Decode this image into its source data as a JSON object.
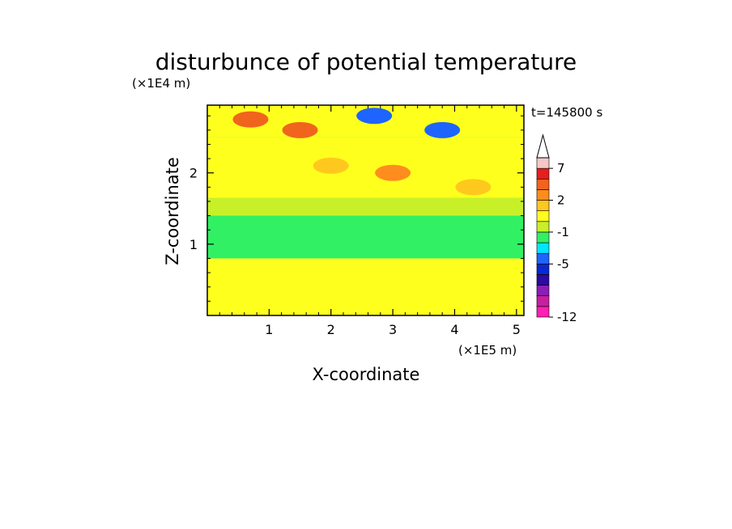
{
  "chart_data": {
    "type": "heatmap",
    "title": "disturbunce of potential temperature",
    "xlabel": "X-coordinate",
    "ylabel": "Z-coordinate",
    "x_unit": "(×1E5 m)",
    "y_unit": "(×1E4 m)",
    "time_label": "t=145800 s",
    "xlim": [
      0,
      5.12
    ],
    "ylim": [
      0,
      2.95
    ],
    "x_ticks": [
      "1",
      "2",
      "3",
      "4",
      "5"
    ],
    "y_ticks": [
      "1",
      "2"
    ],
    "colorbar": {
      "levels": [
        -12,
        -11,
        -9,
        -7,
        -6,
        -5,
        -4,
        -3,
        -1,
        0,
        1,
        2,
        3,
        5,
        7,
        9
      ],
      "tick_labels": [
        "-12",
        "-5",
        "-1",
        "2",
        "7"
      ],
      "colors": [
        "#ff1fb4",
        "#c81fa0",
        "#8c1eb4",
        "#2d0aa0",
        "#0a28d2",
        "#1e64ff",
        "#00e6ff",
        "#32f064",
        "#c8f028",
        "#ffff1e",
        "#ffc81e",
        "#ff8c1e",
        "#f0641e",
        "#e61e1e",
        "#f5c8c8"
      ],
      "extend": "max"
    },
    "field": {
      "z_bands": [
        {
          "z": [
            0.0,
            0.8
          ],
          "value": 0.5
        },
        {
          "z": [
            0.8,
            1.4
          ],
          "value": -1.5
        },
        {
          "z": [
            1.4,
            1.65
          ],
          "value": -0.5
        },
        {
          "z": [
            1.65,
            2.5
          ],
          "value": 0.5
        },
        {
          "z": [
            2.5,
            2.95
          ],
          "value": 0.5
        }
      ],
      "features": [
        {
          "x": 0.7,
          "z": 2.75,
          "value": 3.5
        },
        {
          "x": 1.5,
          "z": 2.6,
          "value": 3
        },
        {
          "x": 3.0,
          "z": 2.0,
          "value": 2
        },
        {
          "x": 2.7,
          "z": 2.8,
          "value": -5
        },
        {
          "x": 3.8,
          "z": 2.6,
          "value": -5
        },
        {
          "x": 2.0,
          "z": 2.1,
          "value": 1.5
        },
        {
          "x": 4.3,
          "z": 1.8,
          "value": 1
        }
      ]
    }
  }
}
